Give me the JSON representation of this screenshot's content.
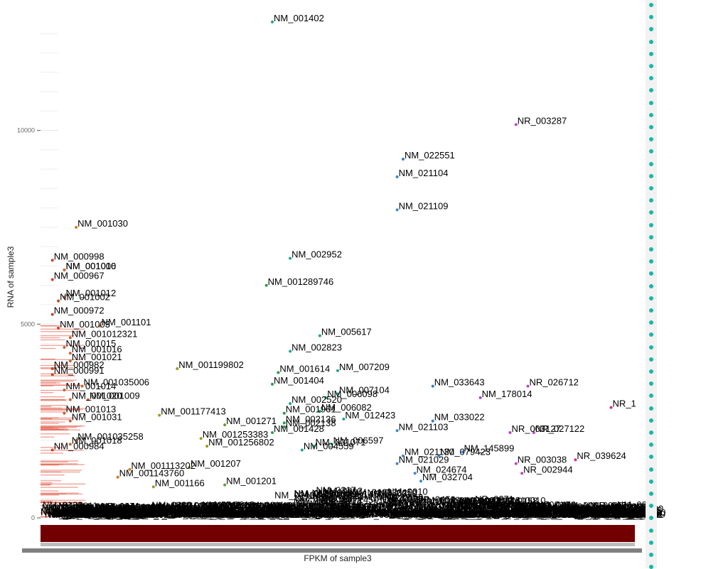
{
  "chart_data": {
    "type": "scatter",
    "title": "",
    "xlabel": "FPKM of sample3",
    "ylabel": "RNA of sample3",
    "ylim": [
      0,
      13000
    ],
    "xlim": [
      0,
      1
    ],
    "yticks": [
      0,
      5000,
      10000
    ],
    "ytick_labels": [
      "0",
      "5000",
      "10000"
    ],
    "grid": true,
    "legend": "right",
    "legend_color": "#17b8a6",
    "points": [
      {
        "label": "NM_001402",
        "x": 0.39,
        "y": 12800,
        "color": "#1aa58f"
      },
      {
        "label": "NR_003287",
        "x": 0.8,
        "y": 10150,
        "color": "#c042c8"
      },
      {
        "label": "NM_022551",
        "x": 0.61,
        "y": 9260,
        "color": "#3a7cc0"
      },
      {
        "label": "NM_021104",
        "x": 0.6,
        "y": 8800,
        "color": "#3a8ad0"
      },
      {
        "label": "NM_021109",
        "x": 0.6,
        "y": 7950,
        "color": "#3a8ad0"
      },
      {
        "label": "NM_001030",
        "x": 0.06,
        "y": 7500,
        "color": "#d07a20"
      },
      {
        "label": "NM_002952",
        "x": 0.42,
        "y": 6700,
        "color": "#1aa58f"
      },
      {
        "label": "NM_000998",
        "x": 0.02,
        "y": 6650,
        "color": "#d04020"
      },
      {
        "label": "NM_001006",
        "x": 0.04,
        "y": 6400,
        "color": "#d06030"
      },
      {
        "label": "NM_001010",
        "x": 0.04,
        "y": 6400,
        "color": "#d06030"
      },
      {
        "label": "NM_000967",
        "x": 0.02,
        "y": 6150,
        "color": "#d04020"
      },
      {
        "label": "NM_001289746",
        "x": 0.38,
        "y": 6000,
        "color": "#2a9a4a"
      },
      {
        "label": "NM_001012",
        "x": 0.04,
        "y": 5700,
        "color": "#d06030"
      },
      {
        "label": "NM_001002",
        "x": 0.03,
        "y": 5600,
        "color": "#d04020"
      },
      {
        "label": "NM_000972",
        "x": 0.02,
        "y": 5250,
        "color": "#d04020"
      },
      {
        "label": "NM_001101",
        "x": 0.1,
        "y": 4950,
        "color": "#d07a20"
      },
      {
        "label": "NM_001003",
        "x": 0.03,
        "y": 4900,
        "color": "#d04020"
      },
      {
        "label": "NM_005617",
        "x": 0.47,
        "y": 4700,
        "color": "#1aa58f"
      },
      {
        "label": "NM_001012321",
        "x": 0.05,
        "y": 4650,
        "color": "#d06030"
      },
      {
        "label": "NM_001015",
        "x": 0.04,
        "y": 4400,
        "color": "#d06030"
      },
      {
        "label": "NM_001016",
        "x": 0.05,
        "y": 4250,
        "color": "#d06030"
      },
      {
        "label": "NM_002823",
        "x": 0.42,
        "y": 4300,
        "color": "#1aa58f"
      },
      {
        "label": "NM_001021",
        "x": 0.05,
        "y": 4050,
        "color": "#d06030"
      },
      {
        "label": "NM_000982",
        "x": 0.02,
        "y": 3850,
        "color": "#d04020"
      },
      {
        "label": "NM_001199802",
        "x": 0.23,
        "y": 3850,
        "color": "#9a9a20"
      },
      {
        "label": "NM_001614",
        "x": 0.4,
        "y": 3750,
        "color": "#2a9a4a"
      },
      {
        "label": "NM_007209",
        "x": 0.5,
        "y": 3800,
        "color": "#1aa58f"
      },
      {
        "label": "NM_000991",
        "x": 0.02,
        "y": 3700,
        "color": "#d04020"
      },
      {
        "label": "NM_001035006",
        "x": 0.07,
        "y": 3400,
        "color": "#d06030"
      },
      {
        "label": "NM_001404",
        "x": 0.39,
        "y": 3450,
        "color": "#2a9a4a"
      },
      {
        "label": "NM_033643",
        "x": 0.66,
        "y": 3400,
        "color": "#3a7cc0"
      },
      {
        "label": "NR_026712",
        "x": 0.82,
        "y": 3400,
        "color": "#c042c8"
      },
      {
        "label": "NM_001014",
        "x": 0.04,
        "y": 3300,
        "color": "#d06030"
      },
      {
        "label": "NM_007104",
        "x": 0.5,
        "y": 3200,
        "color": "#1aa58f"
      },
      {
        "label": "NM_006098",
        "x": 0.48,
        "y": 3100,
        "color": "#1aa58f"
      },
      {
        "label": "NM_178014",
        "x": 0.74,
        "y": 3100,
        "color": "#9a50d0"
      },
      {
        "label": "NM_001020",
        "x": 0.05,
        "y": 3050,
        "color": "#d06030"
      },
      {
        "label": "NM_001009",
        "x": 0.08,
        "y": 3050,
        "color": "#d06030"
      },
      {
        "label": "NM_002520",
        "x": 0.42,
        "y": 2950,
        "color": "#1aa58f"
      },
      {
        "label": "NM_006082",
        "x": 0.47,
        "y": 2750,
        "color": "#1aa58f"
      },
      {
        "label": "NR_1",
        "x": 0.96,
        "y": 2850,
        "color": "#d03080"
      },
      {
        "label": "NM_001013",
        "x": 0.04,
        "y": 2700,
        "color": "#d06030"
      },
      {
        "label": "NM_001961",
        "x": 0.41,
        "y": 2700,
        "color": "#2a9a4a"
      },
      {
        "label": "NM_001177413",
        "x": 0.2,
        "y": 2650,
        "color": "#9a9a20"
      },
      {
        "label": "NM_012423",
        "x": 0.51,
        "y": 2550,
        "color": "#1aa58f"
      },
      {
        "label": "NM_002136",
        "x": 0.41,
        "y": 2450,
        "color": "#2a9a4a"
      },
      {
        "label": "NM_033022",
        "x": 0.66,
        "y": 2500,
        "color": "#3a7cc0"
      },
      {
        "label": "NM_001031",
        "x": 0.05,
        "y": 2500,
        "color": "#d06030"
      },
      {
        "label": "NM_001271",
        "x": 0.31,
        "y": 2400,
        "color": "#5aa02a"
      },
      {
        "label": "NM_002138",
        "x": 0.41,
        "y": 2350,
        "color": "#2a9a4a"
      },
      {
        "label": "NM_021103",
        "x": 0.6,
        "y": 2250,
        "color": "#3a8ad0"
      },
      {
        "label": "NR_003127",
        "x": 0.79,
        "y": 2200,
        "color": "#c042c8"
      },
      {
        "label": "NR_027122",
        "x": 0.83,
        "y": 2200,
        "color": "#c042c8"
      },
      {
        "label": "NM_001428",
        "x": 0.39,
        "y": 2200,
        "color": "#2a9a4a"
      },
      {
        "label": "NM_001253383",
        "x": 0.27,
        "y": 2050,
        "color": "#9a9a20"
      },
      {
        "label": "NM_001035258",
        "x": 0.06,
        "y": 2000,
        "color": "#d06030"
      },
      {
        "label": "NM_001018",
        "x": 0.05,
        "y": 1900,
        "color": "#d06030"
      },
      {
        "label": "NM_006597",
        "x": 0.49,
        "y": 1900,
        "color": "#1aa58f"
      },
      {
        "label": "NM_001256802",
        "x": 0.28,
        "y": 1850,
        "color": "#9a9a20"
      },
      {
        "label": "NM_001071",
        "x": 0.46,
        "y": 1850,
        "color": "#1aa58f"
      },
      {
        "label": "NM_004559",
        "x": 0.44,
        "y": 1750,
        "color": "#1aa58f"
      },
      {
        "label": "NM_000984",
        "x": 0.02,
        "y": 1750,
        "color": "#d04020"
      },
      {
        "label": "NM_145899",
        "x": 0.71,
        "y": 1700,
        "color": "#3a8ad0"
      },
      {
        "label": "NM_021130",
        "x": 0.61,
        "y": 1600,
        "color": "#3a8ad0"
      },
      {
        "label": "NM_079423",
        "x": 0.67,
        "y": 1600,
        "color": "#3a8ad0"
      },
      {
        "label": "NR_039624",
        "x": 0.9,
        "y": 1500,
        "color": "#d03080"
      },
      {
        "label": "NM_001207",
        "x": 0.25,
        "y": 1300,
        "color": "#9a9a20"
      },
      {
        "label": "NR_003038",
        "x": 0.8,
        "y": 1400,
        "color": "#c042c8"
      },
      {
        "label": "NM_021029",
        "x": 0.6,
        "y": 1400,
        "color": "#3a8ad0"
      },
      {
        "label": "NM_001113202",
        "x": 0.15,
        "y": 1250,
        "color": "#d07a20"
      },
      {
        "label": "NM_001143760",
        "x": 0.13,
        "y": 1050,
        "color": "#d07a20"
      },
      {
        "label": "NM_024674",
        "x": 0.63,
        "y": 1150,
        "color": "#3a8ad0"
      },
      {
        "label": "NR_002944",
        "x": 0.81,
        "y": 1150,
        "color": "#c042c8"
      },
      {
        "label": "NM_032704",
        "x": 0.64,
        "y": 950,
        "color": "#3a8ad0"
      },
      {
        "label": "NM_001201",
        "x": 0.31,
        "y": 850,
        "color": "#5aa02a"
      },
      {
        "label": "NM_001166",
        "x": 0.19,
        "y": 800,
        "color": "#9a9a20"
      }
    ],
    "dense_labels": [
      "NM_0000",
      "NM_0010",
      "NM_0012",
      "NM_0011",
      "NM_0013",
      "NM_0020",
      "NM_0061",
      "NM_0217",
      "NM_0332",
      "NR_0271",
      "NM_0154",
      "NM_0006",
      "NM_0123",
      "NM_0019",
      "NM_1450",
      "NR_0158",
      "NM_0005",
      "NM_0181",
      "NM_0240",
      "NR_0459"
    ]
  }
}
